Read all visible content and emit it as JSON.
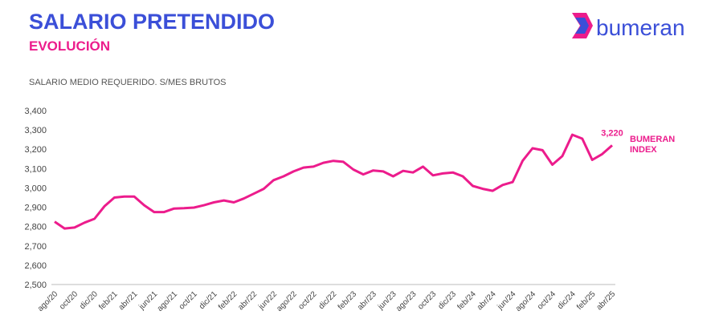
{
  "logo": "bumeran",
  "chart_data": {
    "type": "line",
    "title": "SALARIO PRETENDIDO",
    "subtitle": "EVOLUCIÓN",
    "y_label": "SALARIO MEDIO REQUERIDO. S/MES BRUTOS",
    "categories": [
      "ago/20",
      null,
      "oct/20",
      null,
      "dic/20",
      null,
      "feb/21",
      null,
      "abr/21",
      null,
      "jun/21",
      null,
      "ago/21",
      null,
      "oct/21",
      null,
      "dic/21",
      null,
      "feb/22",
      null,
      "abr/22",
      null,
      "jun/22",
      null,
      "ago/22",
      null,
      "oct/22",
      null,
      "dic/22",
      null,
      "feb/23",
      null,
      "abr/23",
      null,
      "jun/23",
      null,
      "ago/23",
      null,
      "oct/23",
      null,
      "dic/23",
      null,
      "feb/24",
      null,
      "abr/24",
      null,
      "jun/24",
      null,
      "ago/24",
      null,
      "oct/24",
      null,
      "dic/24",
      null,
      "feb/25",
      null,
      "abr/25"
    ],
    "series": [
      {
        "name": "BUMERAN INDEX",
        "color": "#ec1c8c",
        "values": [
          2825,
          2790,
          2795,
          2820,
          2840,
          2905,
          2950,
          2955,
          2955,
          2910,
          2875,
          2875,
          2893,
          2895,
          2898,
          2910,
          2925,
          2935,
          2925,
          2945,
          2970,
          2995,
          3040,
          3060,
          3085,
          3105,
          3110,
          3130,
          3140,
          3135,
          3095,
          3070,
          3090,
          3085,
          3060,
          3088,
          3080,
          3110,
          3065,
          3075,
          3080,
          3060,
          3010,
          2995,
          2985,
          3015,
          3030,
          3140,
          3205,
          3195,
          3120,
          3165,
          3275,
          3255,
          3145,
          3175,
          3220
        ],
        "value_labels": [
          null,
          null,
          null,
          null,
          null,
          null,
          null,
          null,
          null,
          null,
          null,
          null,
          null,
          null,
          null,
          null,
          null,
          null,
          null,
          null,
          null,
          null,
          null,
          null,
          null,
          null,
          null,
          null,
          null,
          null,
          null,
          null,
          null,
          null,
          null,
          null,
          null,
          null,
          null,
          null,
          null,
          null,
          null,
          null,
          null,
          null,
          null,
          null,
          null,
          null,
          null,
          null,
          null,
          null,
          null,
          null,
          "3,220"
        ]
      }
    ],
    "ylim": [
      2500,
      3400
    ],
    "yticks": [
      {
        "value": 2500,
        "label": "2,500"
      },
      {
        "value": 2600,
        "label": "2,600"
      },
      {
        "value": 2700,
        "label": "2,700"
      },
      {
        "value": 2800,
        "label": "2,800"
      },
      {
        "value": 2900,
        "label": "2,900"
      },
      {
        "value": 3000,
        "label": "3,000"
      },
      {
        "value": 3100,
        "label": "3,100"
      },
      {
        "value": 3200,
        "label": "3,200"
      },
      {
        "value": 3300,
        "label": "3,300"
      },
      {
        "value": 3400,
        "label": "3,400"
      }
    ],
    "grid": false
  }
}
